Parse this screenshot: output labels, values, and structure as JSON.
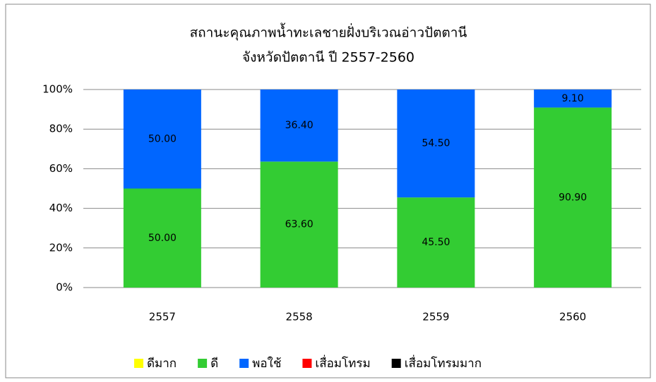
{
  "chart_data": {
    "type": "stacked_bar",
    "title": [
      "สถานะคุณภาพน้ำทะเลชายฝั่งบริเวณอ่าวปัตตานี",
      "จังหวัดปัตตานี ปี 2557-2560"
    ],
    "categories": [
      "2557",
      "2558",
      "2559",
      "2560"
    ],
    "series": [
      {
        "name": "ดีมาก",
        "color": "#ffff00",
        "values": [
          0,
          0,
          0,
          0
        ]
      },
      {
        "name": "ดี",
        "color": "#33cc33",
        "values": [
          50,
          63.6,
          45.5,
          90.9
        ],
        "value_labels": [
          "50.00",
          "63.60",
          "45.50",
          "90.90"
        ]
      },
      {
        "name": "พอใช้",
        "color": "#0066ff",
        "values": [
          50,
          36.4,
          54.5,
          9.1
        ],
        "value_labels": [
          "50.00",
          "36.40",
          "54.50",
          "9.10"
        ]
      },
      {
        "name": "เสื่อมโทรม",
        "color": "#ff0000",
        "values": [
          0,
          0,
          0,
          0
        ]
      },
      {
        "name": "เสื่อมโทรมมาก",
        "color": "#000000",
        "values": [
          0,
          0,
          0,
          0
        ]
      }
    ],
    "ylim": [
      0,
      100
    ],
    "yticks": [
      {
        "value": 0,
        "label": "0%"
      },
      {
        "value": 20,
        "label": "20%"
      },
      {
        "value": 40,
        "label": "40%"
      },
      {
        "value": 60,
        "label": "60%"
      },
      {
        "value": 80,
        "label": "80%"
      },
      {
        "value": 100,
        "label": "100%"
      }
    ],
    "grid": true,
    "legend": "bottom"
  }
}
